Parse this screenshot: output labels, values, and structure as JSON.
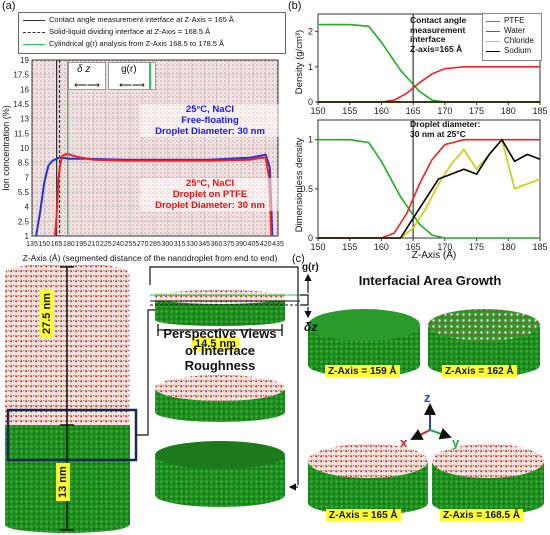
{
  "panel_labels": {
    "a": "(a)",
    "b": "(b)",
    "c": "(c)"
  },
  "panel_a": {
    "legend": [
      {
        "label": "Contact angle measurement interface at Z-Axis = 165 Å",
        "style": "solid",
        "color": "#333333"
      },
      {
        "label": "Solid-liquid dividing interface at Z-Axis = 168.5 Å",
        "style": "dashed",
        "color": "#333333"
      },
      {
        "label": "Cylindrical g(r) analysis from Z-Axis 168.5 to 178.5 Å",
        "style": "solid",
        "color": "#22cc55"
      }
    ],
    "delta_z": "δ z",
    "gr": "g(r)",
    "annot_blue": [
      "25°C, NaCl",
      "Free-floating",
      "Droplet Diameter: 30 nm"
    ],
    "annot_red": [
      "25°C, NaCl",
      "Droplet on PTFE",
      "Droplet Diameter: 30 nm"
    ],
    "ylabel": "Ion concentration (%)",
    "xlabel": "Z-Axis (Å) (segmented distance of the nanodroplet from end to end)",
    "yticks": [
      "1",
      "2.5",
      "4",
      "5.5",
      "7",
      "8.5",
      "10",
      "11.5",
      "13",
      "14.5",
      "16",
      "17.5",
      "19"
    ],
    "xticks": [
      "135",
      "150",
      "165",
      "180",
      "195",
      "210",
      "225",
      "240",
      "255",
      "270",
      "285",
      "300",
      "315",
      "330",
      "345",
      "360",
      "375",
      "390",
      "405",
      "420",
      "435"
    ]
  },
  "chart_data": [
    {
      "type": "line",
      "xlabel": "Z-Axis (Å) (segmented distance of the nanodroplet from end to end)",
      "ylabel": "Ion concentration (%)",
      "xlim": [
        135,
        435
      ],
      "ylim": [
        1,
        19
      ],
      "series": [
        {
          "name": "Free-floating",
          "color": "#2233dd",
          "x": [
            140,
            145,
            150,
            155,
            160,
            165,
            168,
            172,
            180,
            200,
            250,
            300,
            350,
            400,
            420,
            425,
            428
          ],
          "y": [
            1,
            3.5,
            6.5,
            8.2,
            8.7,
            8.9,
            9.0,
            9.0,
            8.9,
            8.9,
            8.8,
            8.8,
            8.8,
            9.0,
            9.3,
            8.0,
            1
          ]
        },
        {
          "name": "Droplet on PTFE",
          "color": "#ee2222",
          "x": [
            163,
            165,
            167,
            169,
            172,
            178,
            190,
            210,
            250,
            300,
            350,
            400,
            415,
            420,
            424,
            427
          ],
          "y": [
            1,
            3.0,
            6.5,
            8.2,
            9.2,
            9.4,
            9.1,
            8.8,
            8.7,
            8.7,
            8.7,
            8.8,
            9.0,
            9.0,
            7.0,
            1
          ]
        }
      ]
    },
    {
      "type": "line",
      "ylabel": "Density (g/cm³)",
      "xlim": [
        150,
        185
      ],
      "ylim": [
        0,
        2.5
      ],
      "yticks": [
        "0",
        "1",
        "2"
      ],
      "xticks": [
        "150",
        "155",
        "160",
        "165",
        "170",
        "175",
        "180",
        "185"
      ],
      "series": [
        {
          "name": "PTFE",
          "color": "#22aa22",
          "x": [
            150,
            155,
            158,
            160,
            163,
            166,
            168,
            170,
            185
          ],
          "y": [
            2.2,
            2.2,
            2.15,
            1.7,
            0.9,
            0.3,
            0.05,
            0,
            0
          ]
        },
        {
          "name": "Water",
          "color": "#ee2222",
          "x": [
            150,
            160,
            162,
            164,
            166,
            168,
            170,
            173,
            185
          ],
          "y": [
            0,
            0,
            0.05,
            0.25,
            0.55,
            0.8,
            0.95,
            1.0,
            1.0
          ]
        },
        {
          "name": "Chloride",
          "color": "#cccc00",
          "x": [
            150,
            165,
            185
          ],
          "y": [
            0,
            0,
            0
          ]
        },
        {
          "name": "Sodium",
          "color": "#000000",
          "x": [
            150,
            165,
            185
          ],
          "y": [
            0,
            0,
            0
          ]
        }
      ]
    },
    {
      "type": "line",
      "ylabel": "Dimensionless density",
      "xlabel": "Z-Axis (Å)",
      "xlim": [
        150,
        185
      ],
      "ylim": [
        0,
        1.2
      ],
      "yticks": [
        "0",
        "0.5",
        "1"
      ],
      "xticks": [
        "150",
        "155",
        "160",
        "165",
        "170",
        "175",
        "180",
        "185"
      ],
      "series": [
        {
          "name": "PTFE",
          "color": "#22aa22",
          "x": [
            150,
            155,
            158,
            160,
            163,
            166,
            168,
            170,
            185
          ],
          "y": [
            1.0,
            1.0,
            0.97,
            0.78,
            0.42,
            0.14,
            0.03,
            0,
            0
          ]
        },
        {
          "name": "Water",
          "color": "#ee2222",
          "x": [
            150,
            160,
            162,
            164,
            166,
            168,
            170,
            173,
            185
          ],
          "y": [
            0,
            0,
            0.05,
            0.25,
            0.55,
            0.8,
            0.95,
            1.0,
            1.0
          ]
        },
        {
          "name": "Chloride",
          "color": "#cccc00",
          "x": [
            150,
            163,
            165,
            167,
            169,
            171,
            173,
            175,
            177,
            179,
            181,
            183,
            185
          ],
          "y": [
            0,
            0,
            0.1,
            0.3,
            0.55,
            0.75,
            0.9,
            0.7,
            0.85,
            1.0,
            0.5,
            0.55,
            0.6
          ]
        },
        {
          "name": "Sodium",
          "color": "#000000",
          "x": [
            150,
            163,
            165,
            167,
            169,
            171,
            173,
            175,
            177,
            179,
            181,
            183,
            185
          ],
          "y": [
            0,
            0,
            0.2,
            0.4,
            0.6,
            0.65,
            0.7,
            0.65,
            0.85,
            1.0,
            0.78,
            0.85,
            0.8
          ]
        }
      ]
    }
  ],
  "panel_b": {
    "annot_top": [
      "Contact angle",
      "measurement",
      "interface",
      "Z-axis=165 Å"
    ],
    "annot_bottom": [
      "Droplet diameter:",
      "30 nm at 25°C"
    ],
    "legend": [
      {
        "label": "PTFE",
        "color": "#22aa22"
      },
      {
        "label": "Water",
        "color": "#ee2222"
      },
      {
        "label": "Chloride",
        "color": "#cccc00"
      },
      {
        "label": "Sodium",
        "color": "#000000"
      }
    ]
  },
  "panel_c": {
    "gr": "g(r)",
    "dz": "δz",
    "label_275": "27.5 nm",
    "label_13": "13 nm",
    "label_145": "14.5 nm",
    "perspective": [
      "Perspective Views",
      "of Interface",
      "Roughness"
    ],
    "growth_title": "Interfacial Area Growth",
    "tags": [
      "Z-Axis = 159 Å",
      "Z-Axis = 162 Å",
      "Z-Axis = 165 Å",
      "Z-Axis = 168.5 Å"
    ],
    "axes": {
      "x": "x",
      "y": "y",
      "z": "z"
    }
  }
}
